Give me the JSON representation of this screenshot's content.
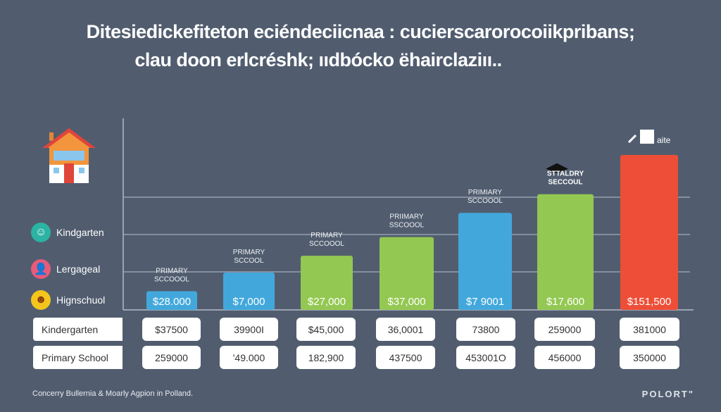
{
  "title_lines": [
    "Ditesiedickefiteton eciéndeciicnaa : cucierscarorocoiikpribans;",
    "clau doon erlcréshk; ııdbócko ëhairclaziıı.."
  ],
  "legend": [
    {
      "label": "Kindgarten",
      "icon": "child-icon",
      "color": "#2bb3a3"
    },
    {
      "label": "Lergageal",
      "icon": "person-icon",
      "color": "#e85a7a"
    },
    {
      "label": "Hignschuol",
      "icon": "smiley-icon",
      "color": "#f4c51c"
    }
  ],
  "top_icon": "house-icon",
  "chart_data": {
    "type": "bar",
    "title": "",
    "xlabel": "",
    "ylabel": "",
    "ylim": [
      0,
      5
    ],
    "grid": true,
    "categories": [
      "PRIMARY SCCOOOL",
      "PRIMARY SCCOOL",
      "PRIMARY SCCOOOL",
      "PRIIMARY SSCOOOL",
      "PRIMIARY SCCOOOL",
      "STTALDRY SECCOUL",
      "aite"
    ],
    "category_icons": [
      null,
      null,
      null,
      null,
      null,
      "graduation-cap-icon",
      "building-icon"
    ],
    "values": [
      0.5,
      1.0,
      1.45,
      1.95,
      2.6,
      3.1,
      4.15
    ],
    "data_labels": [
      "$28.000",
      "$7,000",
      "$27,000",
      "$37,000",
      "$7 9001",
      "$17,600",
      "$151,500"
    ],
    "colors": [
      "#42a8dc",
      "#42a8dc",
      "#93c852",
      "#93c852",
      "#42a8dc",
      "#93c852",
      "#ee4e37"
    ]
  },
  "table": {
    "rows": [
      {
        "label": "Kindergarten",
        "cells": [
          "$37500",
          "39900I",
          "$45,000",
          "36,0001",
          "73800",
          "259000",
          "381000"
        ]
      },
      {
        "label": "Primary School",
        "cells": [
          "259000",
          "'49.000",
          "182,900",
          "437500",
          "453001O",
          "456000",
          "350000"
        ]
      }
    ]
  },
  "footer": "Concerry Bullernia & Moarly Agpion in Polland.",
  "brand": "POLORT\""
}
